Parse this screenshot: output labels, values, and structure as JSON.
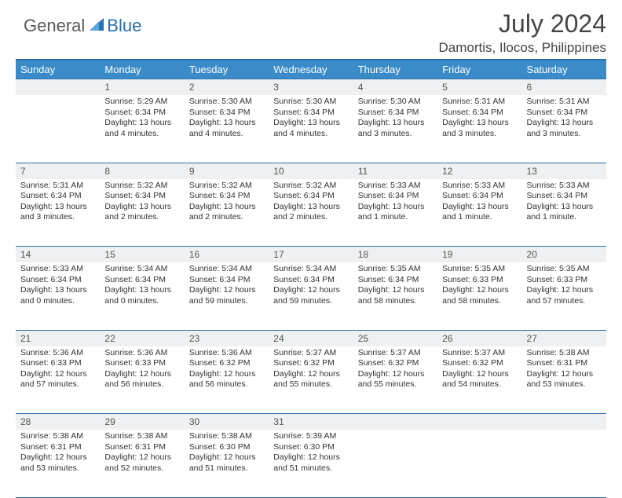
{
  "brand": {
    "general": "General",
    "blue": "Blue"
  },
  "title": "July 2024",
  "location": "Damortis, Ilocos, Philippines",
  "colors": {
    "header_bg": "#3b8bc9",
    "border": "#2a6fb0",
    "daynum_bg": "#eef0f1",
    "text": "#333333"
  },
  "dayHeaders": [
    "Sunday",
    "Monday",
    "Tuesday",
    "Wednesday",
    "Thursday",
    "Friday",
    "Saturday"
  ],
  "weeks": [
    [
      {
        "n": "",
        "sr": "",
        "ss": "",
        "dl": ""
      },
      {
        "n": "1",
        "sr": "Sunrise: 5:29 AM",
        "ss": "Sunset: 6:34 PM",
        "dl": "Daylight: 13 hours and 4 minutes."
      },
      {
        "n": "2",
        "sr": "Sunrise: 5:30 AM",
        "ss": "Sunset: 6:34 PM",
        "dl": "Daylight: 13 hours and 4 minutes."
      },
      {
        "n": "3",
        "sr": "Sunrise: 5:30 AM",
        "ss": "Sunset: 6:34 PM",
        "dl": "Daylight: 13 hours and 4 minutes."
      },
      {
        "n": "4",
        "sr": "Sunrise: 5:30 AM",
        "ss": "Sunset: 6:34 PM",
        "dl": "Daylight: 13 hours and 3 minutes."
      },
      {
        "n": "5",
        "sr": "Sunrise: 5:31 AM",
        "ss": "Sunset: 6:34 PM",
        "dl": "Daylight: 13 hours and 3 minutes."
      },
      {
        "n": "6",
        "sr": "Sunrise: 5:31 AM",
        "ss": "Sunset: 6:34 PM",
        "dl": "Daylight: 13 hours and 3 minutes."
      }
    ],
    [
      {
        "n": "7",
        "sr": "Sunrise: 5:31 AM",
        "ss": "Sunset: 6:34 PM",
        "dl": "Daylight: 13 hours and 3 minutes."
      },
      {
        "n": "8",
        "sr": "Sunrise: 5:32 AM",
        "ss": "Sunset: 6:34 PM",
        "dl": "Daylight: 13 hours and 2 minutes."
      },
      {
        "n": "9",
        "sr": "Sunrise: 5:32 AM",
        "ss": "Sunset: 6:34 PM",
        "dl": "Daylight: 13 hours and 2 minutes."
      },
      {
        "n": "10",
        "sr": "Sunrise: 5:32 AM",
        "ss": "Sunset: 6:34 PM",
        "dl": "Daylight: 13 hours and 2 minutes."
      },
      {
        "n": "11",
        "sr": "Sunrise: 5:33 AM",
        "ss": "Sunset: 6:34 PM",
        "dl": "Daylight: 13 hours and 1 minute."
      },
      {
        "n": "12",
        "sr": "Sunrise: 5:33 AM",
        "ss": "Sunset: 6:34 PM",
        "dl": "Daylight: 13 hours and 1 minute."
      },
      {
        "n": "13",
        "sr": "Sunrise: 5:33 AM",
        "ss": "Sunset: 6:34 PM",
        "dl": "Daylight: 13 hours and 1 minute."
      }
    ],
    [
      {
        "n": "14",
        "sr": "Sunrise: 5:33 AM",
        "ss": "Sunset: 6:34 PM",
        "dl": "Daylight: 13 hours and 0 minutes."
      },
      {
        "n": "15",
        "sr": "Sunrise: 5:34 AM",
        "ss": "Sunset: 6:34 PM",
        "dl": "Daylight: 13 hours and 0 minutes."
      },
      {
        "n": "16",
        "sr": "Sunrise: 5:34 AM",
        "ss": "Sunset: 6:34 PM",
        "dl": "Daylight: 12 hours and 59 minutes."
      },
      {
        "n": "17",
        "sr": "Sunrise: 5:34 AM",
        "ss": "Sunset: 6:34 PM",
        "dl": "Daylight: 12 hours and 59 minutes."
      },
      {
        "n": "18",
        "sr": "Sunrise: 5:35 AM",
        "ss": "Sunset: 6:34 PM",
        "dl": "Daylight: 12 hours and 58 minutes."
      },
      {
        "n": "19",
        "sr": "Sunrise: 5:35 AM",
        "ss": "Sunset: 6:33 PM",
        "dl": "Daylight: 12 hours and 58 minutes."
      },
      {
        "n": "20",
        "sr": "Sunrise: 5:35 AM",
        "ss": "Sunset: 6:33 PM",
        "dl": "Daylight: 12 hours and 57 minutes."
      }
    ],
    [
      {
        "n": "21",
        "sr": "Sunrise: 5:36 AM",
        "ss": "Sunset: 6:33 PM",
        "dl": "Daylight: 12 hours and 57 minutes."
      },
      {
        "n": "22",
        "sr": "Sunrise: 5:36 AM",
        "ss": "Sunset: 6:33 PM",
        "dl": "Daylight: 12 hours and 56 minutes."
      },
      {
        "n": "23",
        "sr": "Sunrise: 5:36 AM",
        "ss": "Sunset: 6:32 PM",
        "dl": "Daylight: 12 hours and 56 minutes."
      },
      {
        "n": "24",
        "sr": "Sunrise: 5:37 AM",
        "ss": "Sunset: 6:32 PM",
        "dl": "Daylight: 12 hours and 55 minutes."
      },
      {
        "n": "25",
        "sr": "Sunrise: 5:37 AM",
        "ss": "Sunset: 6:32 PM",
        "dl": "Daylight: 12 hours and 55 minutes."
      },
      {
        "n": "26",
        "sr": "Sunrise: 5:37 AM",
        "ss": "Sunset: 6:32 PM",
        "dl": "Daylight: 12 hours and 54 minutes."
      },
      {
        "n": "27",
        "sr": "Sunrise: 5:38 AM",
        "ss": "Sunset: 6:31 PM",
        "dl": "Daylight: 12 hours and 53 minutes."
      }
    ],
    [
      {
        "n": "28",
        "sr": "Sunrise: 5:38 AM",
        "ss": "Sunset: 6:31 PM",
        "dl": "Daylight: 12 hours and 53 minutes."
      },
      {
        "n": "29",
        "sr": "Sunrise: 5:38 AM",
        "ss": "Sunset: 6:31 PM",
        "dl": "Daylight: 12 hours and 52 minutes."
      },
      {
        "n": "30",
        "sr": "Sunrise: 5:38 AM",
        "ss": "Sunset: 6:30 PM",
        "dl": "Daylight: 12 hours and 51 minutes."
      },
      {
        "n": "31",
        "sr": "Sunrise: 5:39 AM",
        "ss": "Sunset: 6:30 PM",
        "dl": "Daylight: 12 hours and 51 minutes."
      },
      {
        "n": "",
        "sr": "",
        "ss": "",
        "dl": ""
      },
      {
        "n": "",
        "sr": "",
        "ss": "",
        "dl": ""
      },
      {
        "n": "",
        "sr": "",
        "ss": "",
        "dl": ""
      }
    ]
  ]
}
